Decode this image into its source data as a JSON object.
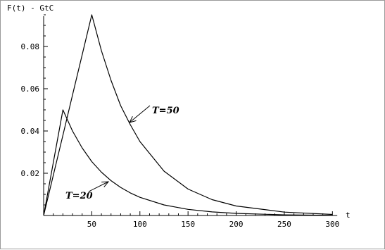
{
  "chart_data": {
    "type": "line",
    "ylabel": "F(t) - GtC",
    "xlabel": "t",
    "xlim": [
      0,
      310
    ],
    "ylim": [
      0,
      0.1
    ],
    "x_ticks": [
      50,
      100,
      150,
      200,
      250,
      300
    ],
    "y_ticks": [
      0.02,
      0.04,
      0.06,
      0.08
    ],
    "x_tick_labels": [
      "50",
      "100",
      "150",
      "200",
      "250",
      "300"
    ],
    "y_tick_labels": [
      "0.02",
      "0.04",
      "0.06",
      "0.08"
    ],
    "grid": false,
    "series": [
      {
        "name": "T=50",
        "x": [
          0,
          10,
          20,
          30,
          40,
          50,
          60,
          70,
          80,
          90,
          100,
          125,
          150,
          175,
          200,
          250,
          300
        ],
        "y": [
          0,
          0.019,
          0.038,
          0.057,
          0.076,
          0.095,
          0.078,
          0.064,
          0.052,
          0.043,
          0.035,
          0.021,
          0.0125,
          0.0075,
          0.0045,
          0.0016,
          0.0005
        ]
      },
      {
        "name": "T=20",
        "x": [
          0,
          10,
          20,
          30,
          40,
          50,
          60,
          70,
          80,
          90,
          100,
          125,
          150,
          175,
          200,
          250,
          300
        ],
        "y": [
          0,
          0.025,
          0.05,
          0.04,
          0.032,
          0.0255,
          0.0205,
          0.0165,
          0.0133,
          0.0107,
          0.0086,
          0.005,
          0.0029,
          0.0017,
          0.001,
          0.0003,
          0.0001
        ]
      }
    ],
    "annotations": [
      {
        "text": "T=50",
        "series": "T=50"
      },
      {
        "text": "T=20",
        "series": "T=20"
      }
    ]
  }
}
